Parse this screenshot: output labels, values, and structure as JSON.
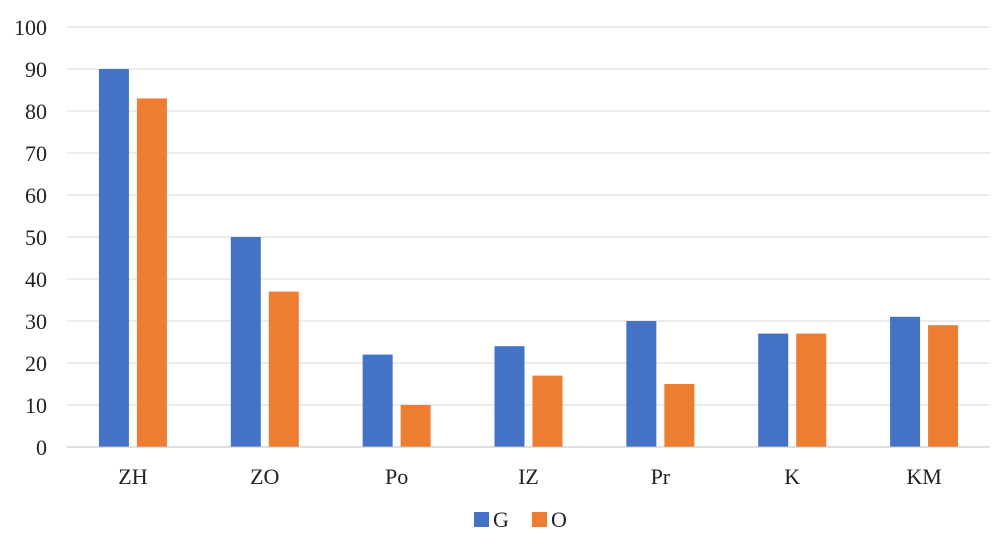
{
  "chart_data": {
    "type": "bar",
    "title": "",
    "xlabel": "",
    "ylabel": "",
    "categories": [
      "ZH",
      "ZO",
      "Po",
      "IZ",
      "Pr",
      "K",
      "KM"
    ],
    "series": [
      {
        "name": "G",
        "color": "#4472C4",
        "values": [
          90,
          50,
          22,
          24,
          30,
          27,
          31
        ]
      },
      {
        "name": "O",
        "color": "#ED7D31",
        "values": [
          83,
          37,
          10,
          17,
          15,
          27,
          29
        ]
      }
    ],
    "ylim": [
      0,
      100
    ],
    "yticks": [
      0,
      10,
      20,
      30,
      40,
      50,
      60,
      70,
      80,
      90,
      100
    ],
    "grid": true,
    "legend_position": "bottom"
  }
}
